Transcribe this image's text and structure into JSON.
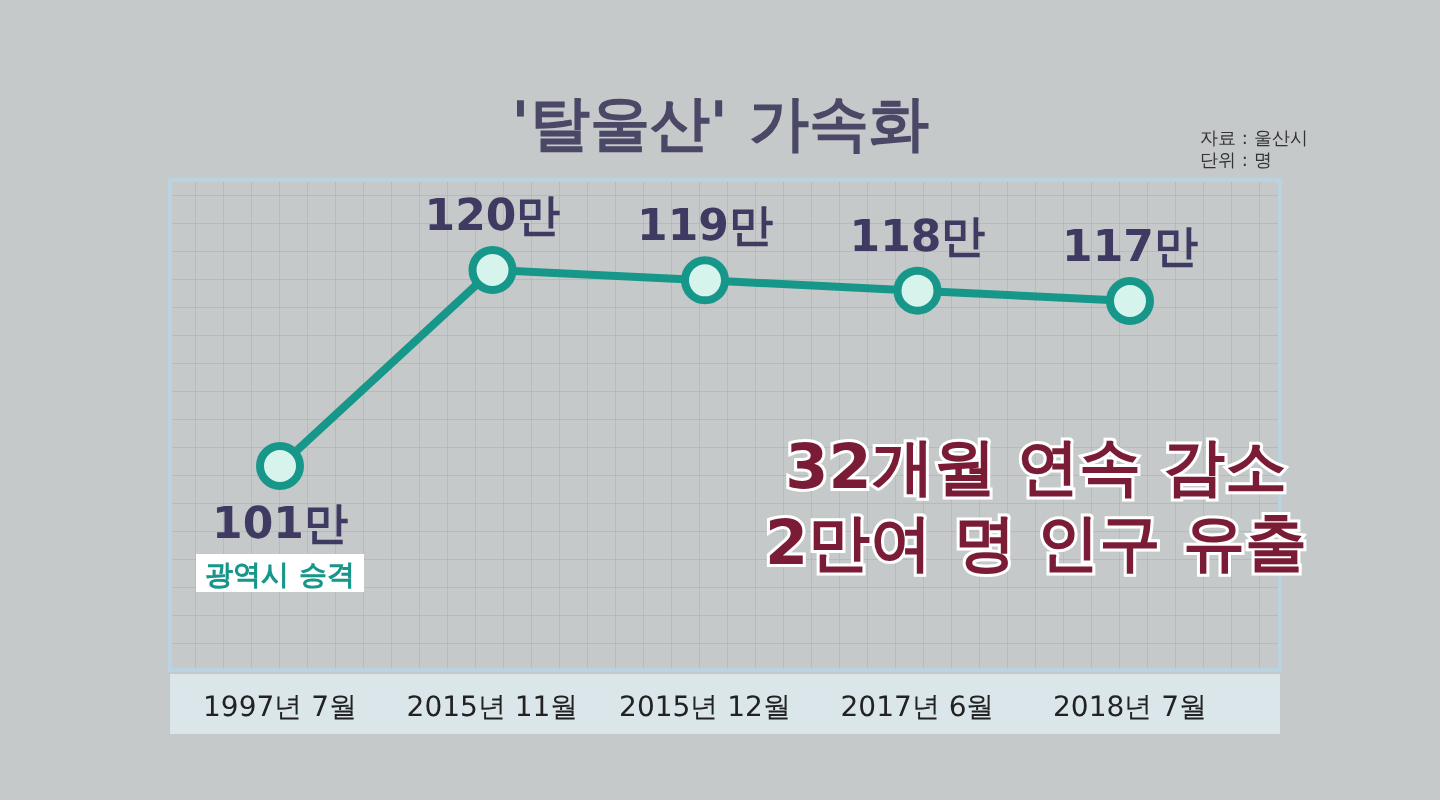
{
  "chart_data": {
    "type": "line",
    "title": "'탈울산' 가속화",
    "categories": [
      "1997년 7월",
      "2015년 11월",
      "2015년 12월",
      "2017년 6월",
      "2018년 7월"
    ],
    "series": [
      {
        "color": "#17968a",
        "values": [
          101,
          120,
          119,
          118,
          117
        ],
        "value_labels": [
          "101만",
          "120만",
          "119만",
          "118만",
          "117만"
        ]
      }
    ],
    "marker": "circle",
    "line_style": "solid",
    "annotations": [
      "광역시 승격",
      "32개월 연속 감소\n2만여 명 인구 유출",
      "자료 : 울산시",
      "단위 : 명"
    ]
  }
}
